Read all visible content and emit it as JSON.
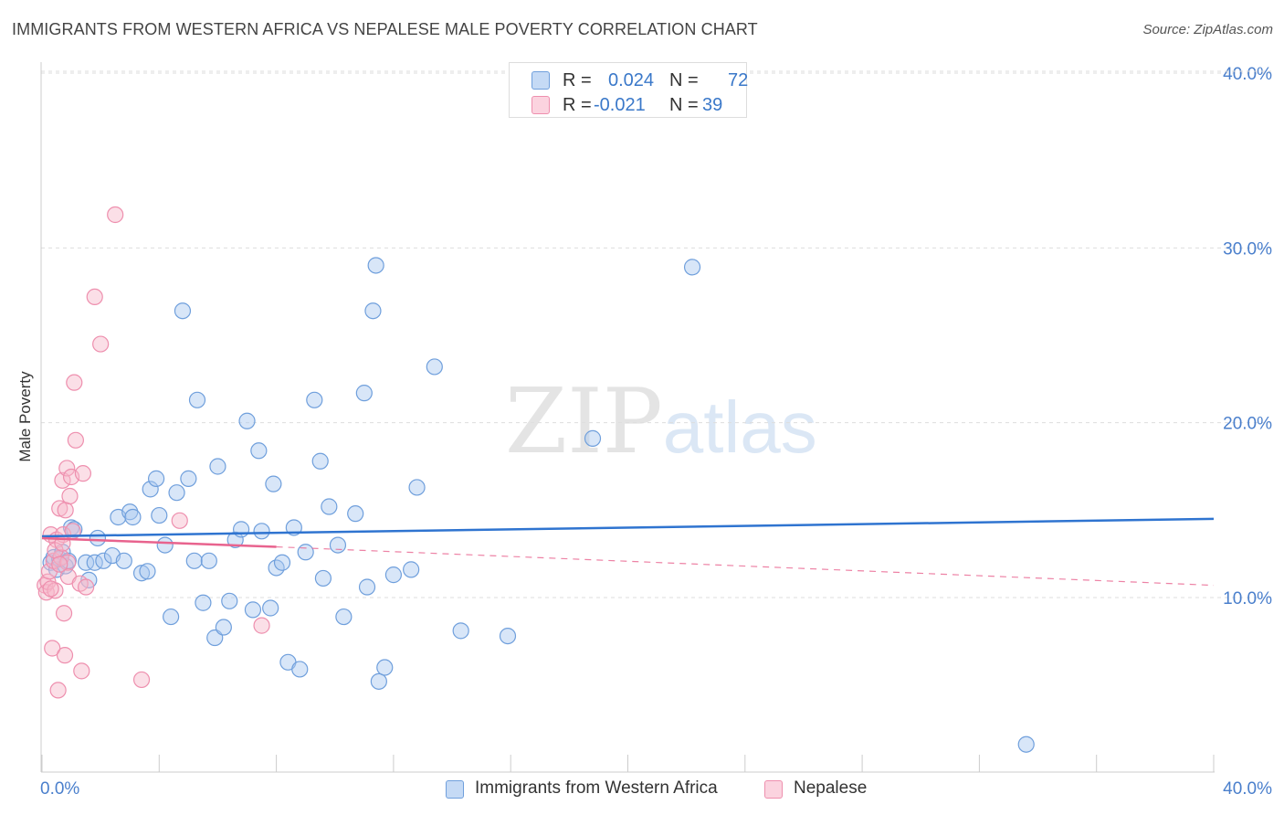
{
  "title": "IMMIGRANTS FROM WESTERN AFRICA VS NEPALESE MALE POVERTY CORRELATION CHART",
  "source": "Source: ZipAtlas.com",
  "watermark": {
    "zip": "ZIP",
    "atlas": "atlas"
  },
  "colors": {
    "blue_fill": "#a9c8ef",
    "blue_stroke": "#6f9fdc",
    "blue_line": "#2f74d0",
    "pink_fill": "#f6b7ca",
    "pink_stroke": "#ee8fae",
    "pink_line": "#e8638e",
    "axis_text": "#4a7fcc",
    "grid": "#dddddd"
  },
  "legend_top": [
    {
      "r_label": "R =",
      "r_value": "0.024",
      "n_label": "N =",
      "n_value": "72"
    },
    {
      "r_label": "R =",
      "r_value": "-0.021",
      "n_label": "N =",
      "n_value": "39"
    }
  ],
  "chart_data": {
    "type": "scatter",
    "title": "IMMIGRANTS FROM WESTERN AFRICA VS NEPALESE MALE POVERTY CORRELATION CHART",
    "xlabel": "",
    "ylabel": "Male Poverty",
    "xlim": [
      0,
      40
    ],
    "ylim": [
      0,
      43
    ],
    "x_ticks": [
      "0.0%",
      "40.0%"
    ],
    "y_ticks": [
      {
        "value": 10,
        "label": "10.0%"
      },
      {
        "value": 20,
        "label": "20.0%"
      },
      {
        "value": 30,
        "label": "30.0%"
      },
      {
        "value": 40,
        "label": "40.0%"
      }
    ],
    "grid": true,
    "legend_position": "bottom",
    "series": [
      {
        "name": "Immigrants from Western Africa",
        "color": "blue",
        "trend": {
          "x": [
            0.0,
            40.0
          ],
          "y": [
            13.5,
            14.5
          ],
          "style": "solid"
        },
        "points": [
          [
            0.3,
            12.0
          ],
          [
            0.4,
            12.3
          ],
          [
            0.5,
            11.6
          ],
          [
            0.6,
            12.2
          ],
          [
            0.7,
            12.6
          ],
          [
            0.8,
            11.8
          ],
          [
            0.9,
            12.1
          ],
          [
            1.0,
            14.0
          ],
          [
            1.1,
            13.9
          ],
          [
            1.5,
            12.0
          ],
          [
            1.6,
            11.0
          ],
          [
            1.8,
            12.0
          ],
          [
            1.9,
            13.4
          ],
          [
            2.1,
            12.1
          ],
          [
            2.4,
            12.4
          ],
          [
            2.6,
            14.6
          ],
          [
            2.8,
            12.1
          ],
          [
            3.0,
            14.9
          ],
          [
            3.1,
            14.6
          ],
          [
            3.4,
            11.4
          ],
          [
            3.6,
            11.5
          ],
          [
            3.7,
            16.2
          ],
          [
            3.9,
            16.8
          ],
          [
            4.0,
            14.7
          ],
          [
            4.2,
            13.0
          ],
          [
            4.4,
            8.9
          ],
          [
            4.6,
            16.0
          ],
          [
            4.8,
            26.4
          ],
          [
            5.0,
            16.8
          ],
          [
            5.2,
            12.1
          ],
          [
            5.3,
            21.3
          ],
          [
            5.5,
            9.7
          ],
          [
            5.7,
            12.1
          ],
          [
            5.9,
            7.7
          ],
          [
            6.0,
            17.5
          ],
          [
            6.2,
            8.3
          ],
          [
            6.4,
            9.8
          ],
          [
            6.6,
            13.3
          ],
          [
            6.8,
            13.9
          ],
          [
            7.0,
            20.1
          ],
          [
            7.2,
            9.3
          ],
          [
            7.4,
            18.4
          ],
          [
            7.5,
            13.8
          ],
          [
            7.8,
            9.4
          ],
          [
            7.9,
            16.5
          ],
          [
            8.0,
            11.7
          ],
          [
            8.2,
            12.0
          ],
          [
            8.4,
            6.3
          ],
          [
            8.6,
            14.0
          ],
          [
            8.8,
            5.9
          ],
          [
            9.0,
            12.6
          ],
          [
            9.3,
            21.3
          ],
          [
            9.5,
            17.8
          ],
          [
            9.6,
            11.1
          ],
          [
            9.8,
            15.2
          ],
          [
            10.1,
            13.0
          ],
          [
            10.3,
            8.9
          ],
          [
            10.7,
            14.8
          ],
          [
            11.0,
            21.7
          ],
          [
            11.1,
            10.6
          ],
          [
            11.3,
            26.4
          ],
          [
            11.4,
            29.0
          ],
          [
            11.5,
            5.2
          ],
          [
            11.7,
            6.0
          ],
          [
            12.0,
            11.3
          ],
          [
            12.6,
            11.6
          ],
          [
            12.8,
            16.3
          ],
          [
            13.4,
            23.2
          ],
          [
            14.3,
            8.1
          ],
          [
            15.9,
            7.8
          ],
          [
            18.8,
            19.1
          ],
          [
            22.2,
            28.9
          ],
          [
            33.6,
            1.6
          ]
        ]
      },
      {
        "name": "Nepalese",
        "color": "pink",
        "trend": {
          "x": [
            0.0,
            8.0
          ],
          "y": [
            13.4,
            12.9
          ],
          "style": "solid",
          "extension": {
            "x": [
              8.0,
              40.0
            ],
            "y": [
              12.9,
              10.7
            ],
            "style": "dashed"
          }
        },
        "points": [
          [
            0.1,
            10.7
          ],
          [
            0.15,
            10.3
          ],
          [
            0.2,
            10.9
          ],
          [
            0.25,
            11.5
          ],
          [
            0.3,
            13.6
          ],
          [
            0.35,
            7.1
          ],
          [
            0.4,
            12.1
          ],
          [
            0.45,
            10.4
          ],
          [
            0.5,
            13.3
          ],
          [
            0.55,
            4.7
          ],
          [
            0.6,
            15.1
          ],
          [
            0.65,
            12.3
          ],
          [
            0.7,
            16.7
          ],
          [
            0.72,
            13.6
          ],
          [
            0.75,
            9.1
          ],
          [
            0.78,
            6.7
          ],
          [
            0.8,
            15.0
          ],
          [
            0.85,
            17.4
          ],
          [
            0.88,
            12.0
          ],
          [
            0.9,
            11.2
          ],
          [
            0.95,
            15.8
          ],
          [
            1.0,
            16.9
          ],
          [
            1.05,
            13.8
          ],
          [
            1.1,
            22.3
          ],
          [
            1.15,
            19.0
          ],
          [
            1.3,
            10.8
          ],
          [
            1.35,
            5.8
          ],
          [
            1.4,
            17.1
          ],
          [
            1.5,
            10.6
          ],
          [
            1.8,
            27.2
          ],
          [
            2.0,
            24.5
          ],
          [
            2.5,
            31.9
          ],
          [
            3.4,
            5.3
          ],
          [
            4.7,
            14.4
          ],
          [
            7.5,
            8.4
          ],
          [
            0.3,
            10.5
          ],
          [
            0.45,
            12.7
          ],
          [
            0.6,
            11.9
          ],
          [
            0.7,
            13.1
          ]
        ]
      }
    ]
  },
  "bottom_legend": [
    {
      "label": "Immigrants from Western Africa"
    },
    {
      "label": "Nepalese"
    }
  ]
}
